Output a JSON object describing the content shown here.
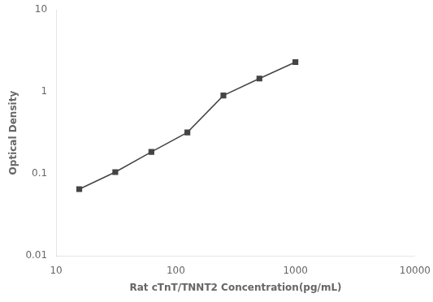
{
  "chart_data": {
    "type": "line",
    "x": [
      15.6,
      31.2,
      62.5,
      125,
      250,
      500,
      1000
    ],
    "values": [
      0.065,
      0.105,
      0.185,
      0.32,
      0.9,
      1.45,
      2.3
    ],
    "xlabel": "Rat cTnT/TNNT2 Concentration(pg/mL)",
    "ylabel": "Optical Density",
    "xlim": [
      10,
      10000
    ],
    "ylim": [
      0.01,
      10
    ],
    "xticks": [
      10,
      100,
      1000,
      10000
    ],
    "yticks": [
      0.01,
      0.1,
      1,
      10
    ],
    "log": true,
    "grid": false,
    "color": "#444444",
    "marker": "square"
  }
}
